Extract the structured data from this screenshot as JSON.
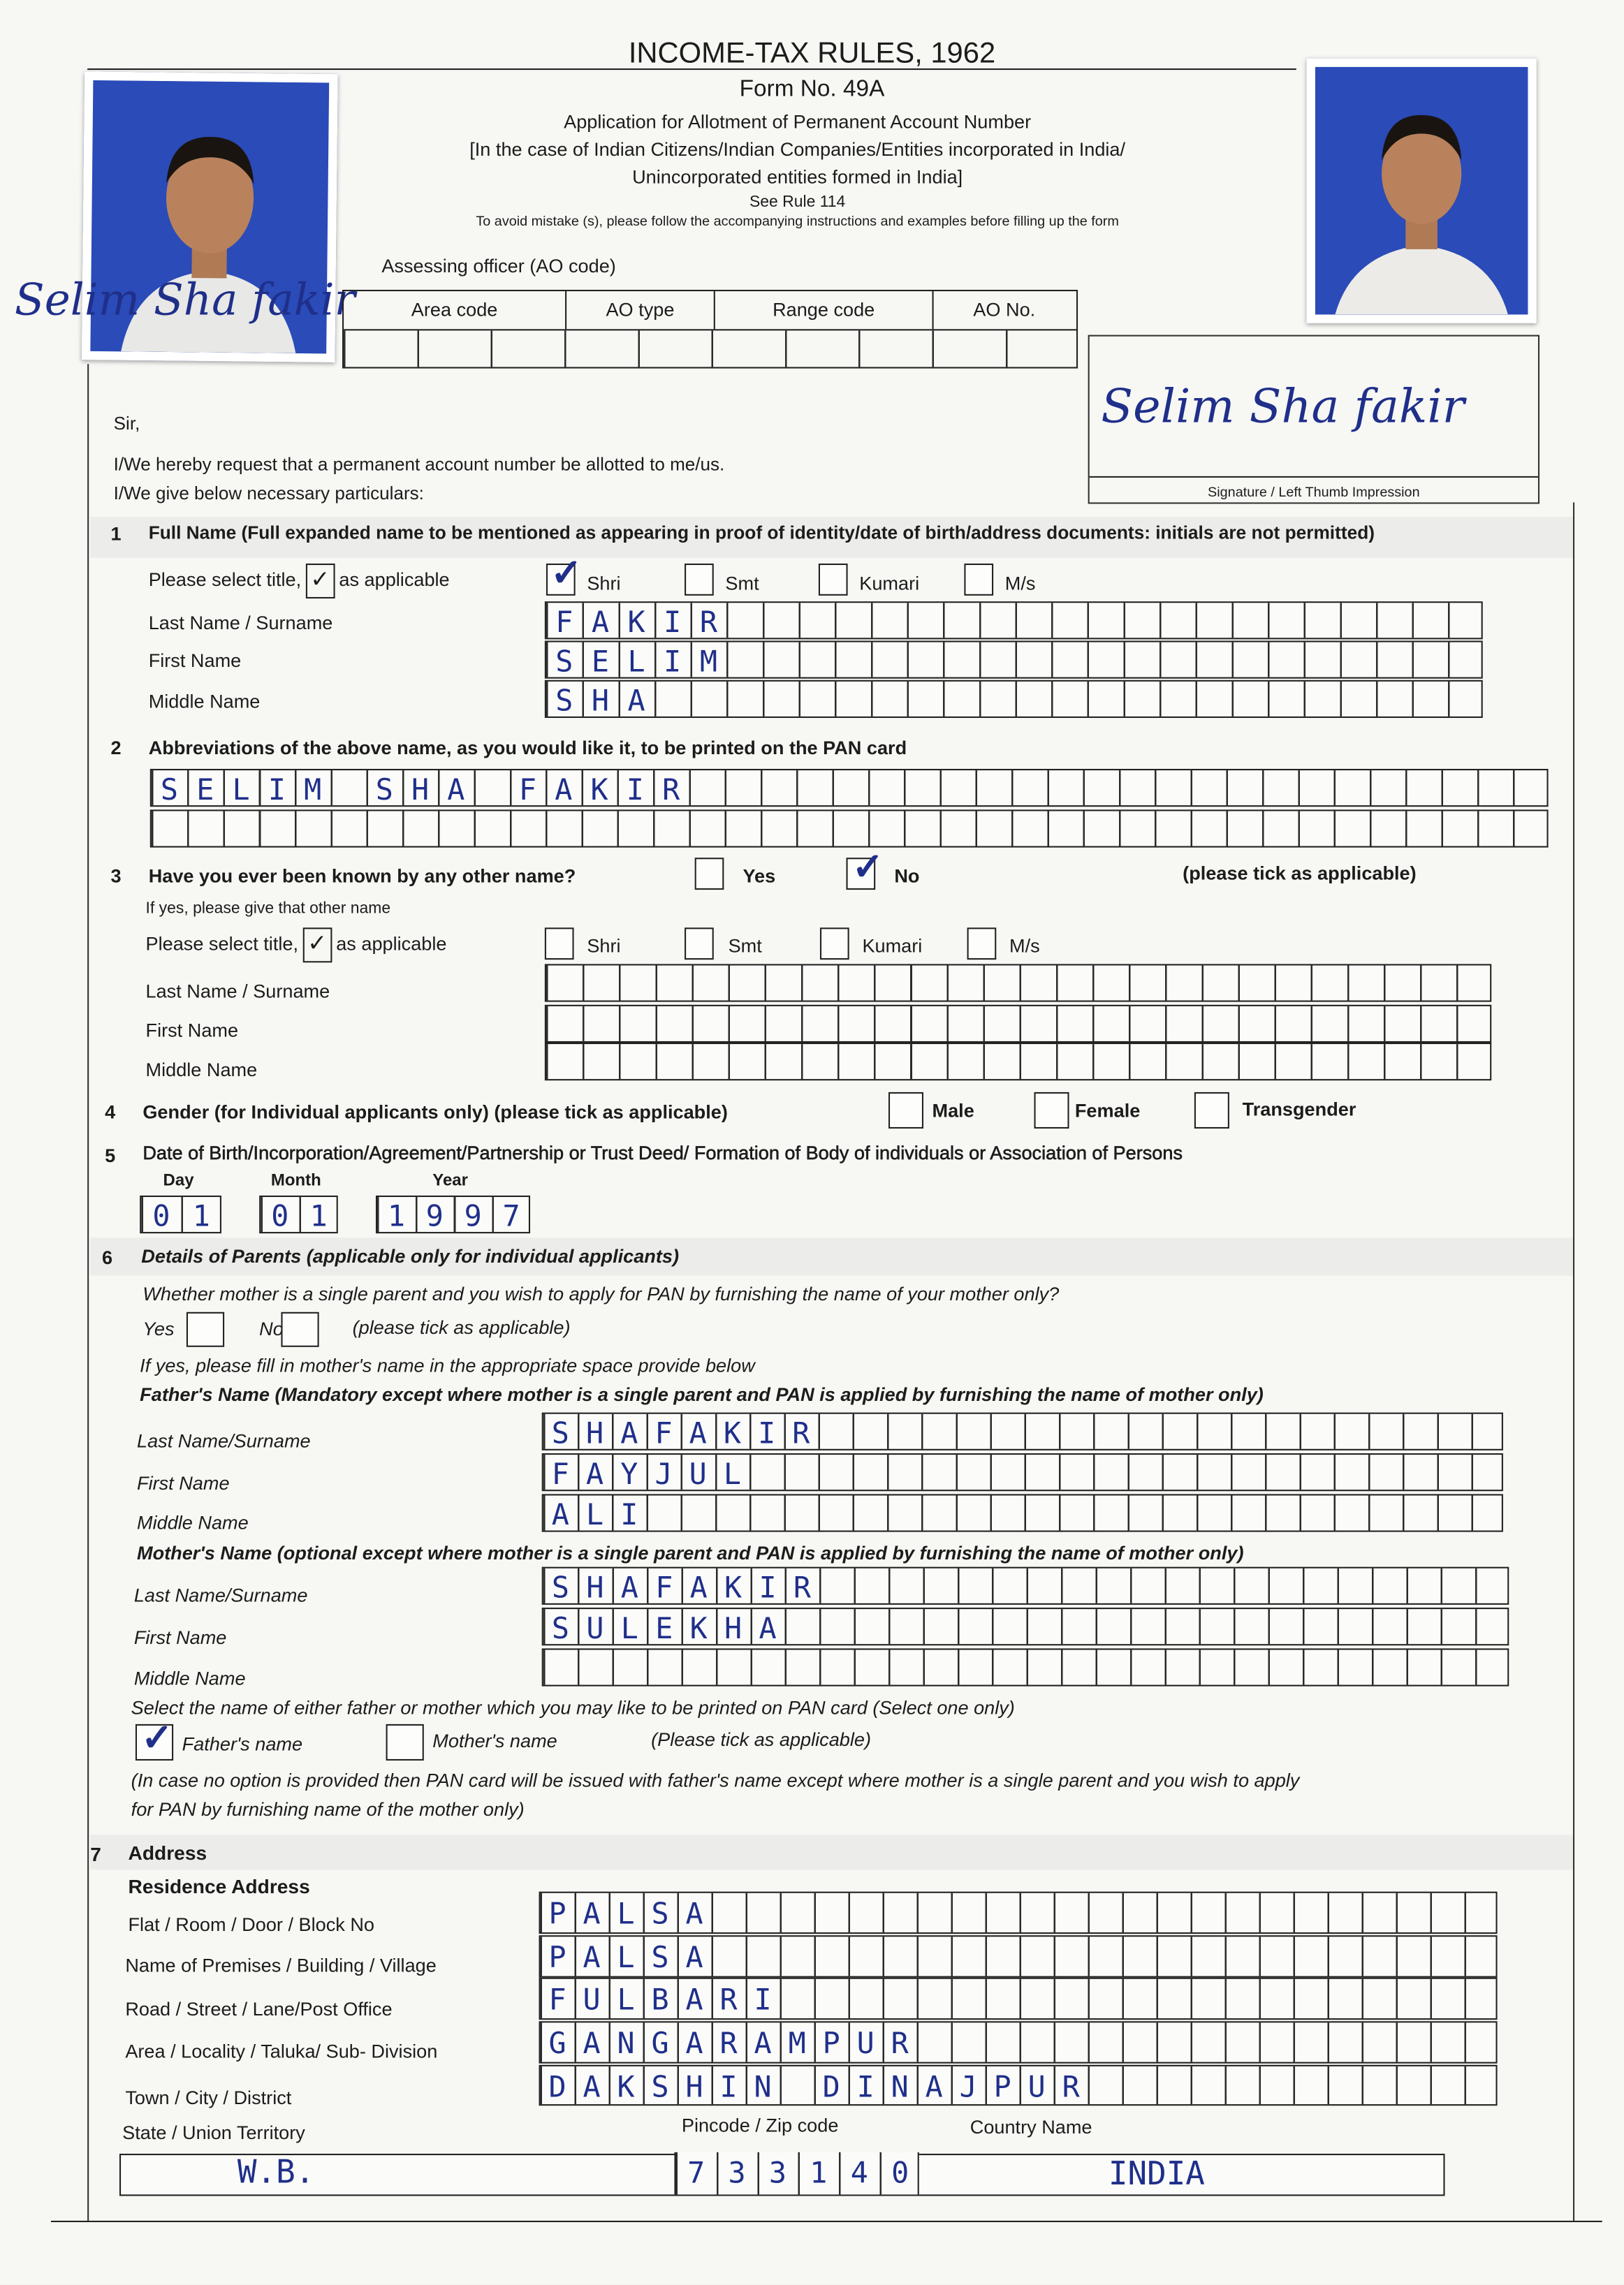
{
  "header": {
    "title": "INCOME-TAX RULES, 1962",
    "form_no": "Form No. 49A",
    "subtitle": "Application for Allotment of Permanent Account Number",
    "scope_line1": "[In the case of Indian Citizens/Indian Companies/Entities incorporated in India/",
    "scope_line2": "Unincorporated entities formed in India]",
    "rule": "See Rule 114",
    "instruction": "To avoid mistake (s), please follow the accompanying instructions and examples before filling up the form"
  },
  "ao": {
    "label": "Assessing officer (AO code)",
    "columns": [
      "Area code",
      "AO type",
      "Range code",
      "AO No."
    ]
  },
  "photo_signature": "Selim Sha fakir",
  "signature": {
    "value": "Selim Sha fakir",
    "label": "Signature / Left Thumb Impression"
  },
  "intro": {
    "salutation": "Sir,",
    "request": "I/We hereby request that a permanent account number be allotted to me/us.",
    "particulars": "I/We give below necessary particulars:"
  },
  "s1": {
    "num": "1",
    "heading": "Full Name (Full expanded name to be mentioned as appearing in proof of identity/date of birth/address documents: initials are not permitted)",
    "title_prompt_pre": "Please select title,",
    "title_prompt_post": "as applicable",
    "titles": [
      "Shri",
      "Smt",
      "Kumari",
      "M/s"
    ],
    "selected_title": "Shri",
    "fields": [
      {
        "label": "Last Name / Surname",
        "value": "FAKIR"
      },
      {
        "label": "First Name",
        "value": "SELIM"
      },
      {
        "label": "Middle Name",
        "value": "SHA"
      }
    ]
  },
  "s2": {
    "num": "2",
    "heading": "Abbreviations of the above name, as you would like it, to be printed on the PAN card",
    "lines": [
      "SELIM SHA FAKIR",
      ""
    ]
  },
  "s3": {
    "num": "3",
    "question": "Have you ever been known by any other name?",
    "yes": "Yes",
    "no": "No",
    "answer": "No",
    "tick_note": "(please tick as applicable)",
    "if_yes": "If yes, please give that other name",
    "title_prompt_pre": "Please select title,",
    "title_prompt_post": "as applicable",
    "titles": [
      "Shri",
      "Smt",
      "Kumari",
      "M/s"
    ],
    "fields": [
      {
        "label": "Last Name / Surname",
        "value": ""
      },
      {
        "label": "First Name",
        "value": ""
      },
      {
        "label": "Middle Name",
        "value": ""
      }
    ]
  },
  "s4": {
    "num": "4",
    "heading": "Gender (for Individual applicants only) (please tick as applicable)",
    "options": [
      "Male",
      "Female",
      "Transgender"
    ]
  },
  "s5": {
    "num": "5",
    "heading": "Date of Birth/Incorporation/Agreement/Partnership or Trust Deed/ Formation of Body of individuals or Association of Persons",
    "day_label": "Day",
    "month_label": "Month",
    "year_label": "Year",
    "day": "01",
    "month": "01",
    "year": "1997"
  },
  "s6": {
    "num": "6",
    "heading": "Details of Parents (applicable only for individual applicants)",
    "single_parent_q": "Whether mother is a single parent and you wish to apply for PAN by furnishing the name of your mother only?",
    "yes": "Yes",
    "no": "No",
    "tick_note": "(please tick as applicable)",
    "if_yes_note": "If yes, please fill in mother's name in the appropriate space provide below",
    "father_heading": "Father's Name (Mandatory except where mother is a single parent and PAN is applied by furnishing the name of mother only)",
    "father_fields": [
      {
        "label": "Last Name/Surname",
        "value": "SHAFAKIR"
      },
      {
        "label": "First Name",
        "value": "FAYJUL"
      },
      {
        "label": "Middle Name",
        "value": "ALI"
      }
    ],
    "mother_heading": "Mother's Name (optional except where mother is a single parent and PAN is applied by furnishing the name of mother only)",
    "mother_fields": [
      {
        "label": "Last Name/Surname",
        "value": "SHAFAKIR"
      },
      {
        "label": "First Name",
        "value": "SULEKHA"
      },
      {
        "label": "Middle Name",
        "value": ""
      }
    ],
    "select_prompt": "Select the name of either father or mother which you may like to be printed on PAN card (Select one only)",
    "options": [
      "Father's name",
      "Mother's name"
    ],
    "selected": "Father's name",
    "tick_note2": "(Please tick as applicable)",
    "footnote_line1": "(In case no option is provided then PAN card will be issued with father's name except where mother is a single parent and you wish to apply",
    "footnote_line2": "for PAN by furnishing name of the mother only)"
  },
  "s7": {
    "num": "7",
    "heading": "Address",
    "subheading": "Residence Address",
    "fields": [
      {
        "label": "Flat / Room / Door / Block No",
        "value": "PALSA"
      },
      {
        "label": "Name of Premises / Building / Village",
        "value": "PALSA"
      },
      {
        "label": "Road / Street / Lane/Post Office",
        "value": "FULBARI"
      },
      {
        "label": "Area / Locality / Taluka/ Sub- Division",
        "value": "GANGARAMPUR"
      },
      {
        "label": "Town / City / District",
        "value": "DAKSHIN DINAJPUR"
      }
    ],
    "state_label": "State / Union Territory",
    "pincode_label": "Pincode / Zip code",
    "country_label": "Country Name",
    "state": "W.B.",
    "pincode": "733140",
    "country": "INDIA"
  },
  "colors": {
    "ink": "#1f2f8a",
    "print": "#1c1c1c",
    "photo_background": "#2a4bb8"
  }
}
